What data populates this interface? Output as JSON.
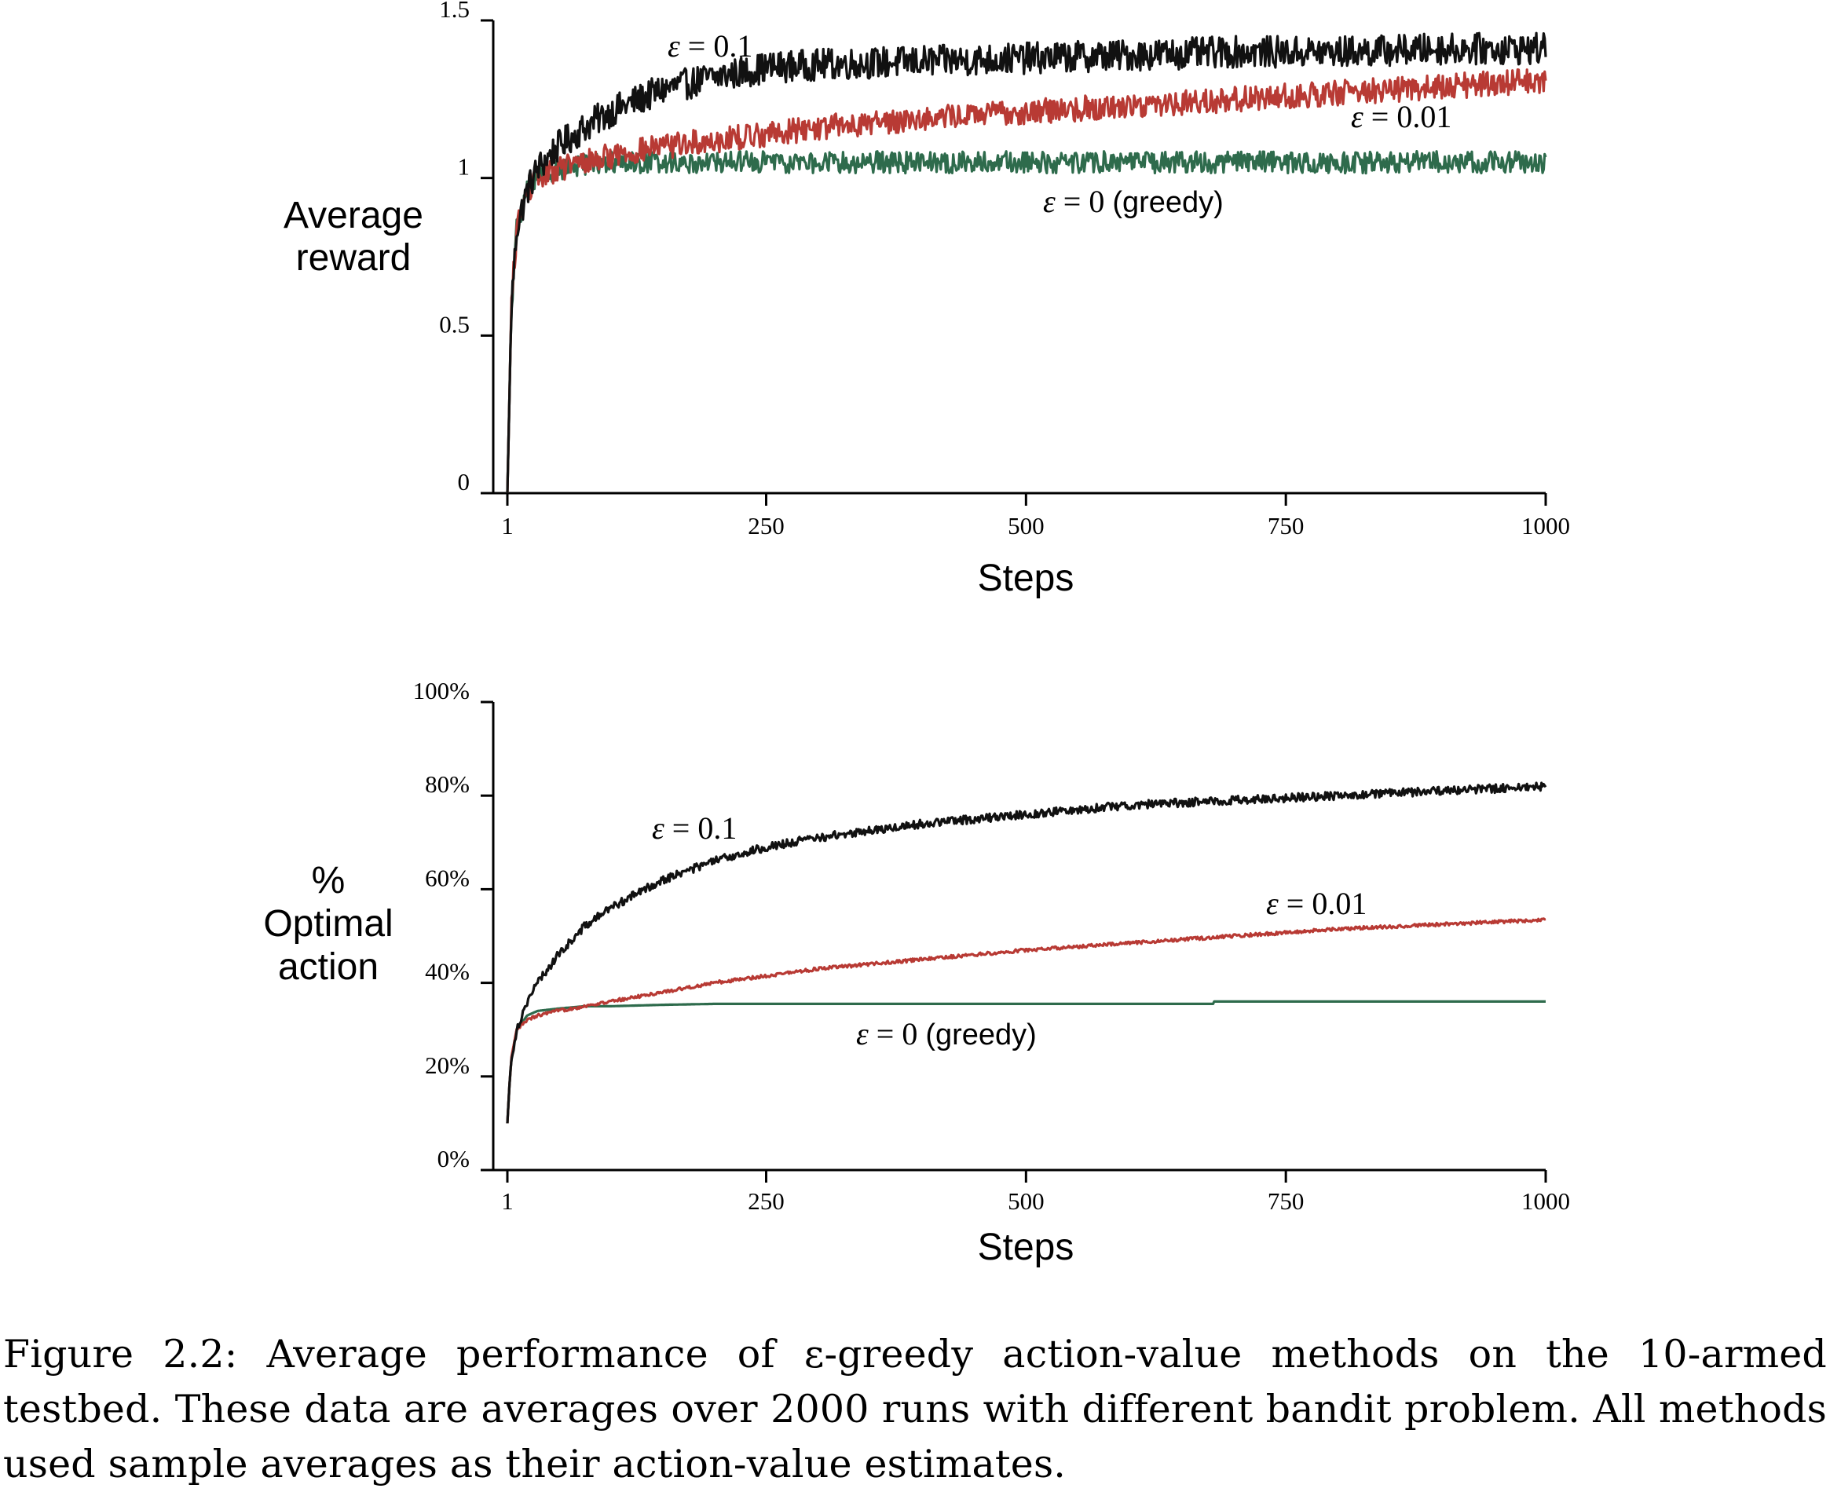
{
  "chart_data": [
    {
      "type": "line",
      "ylabel_lines": [
        "Average",
        "reward"
      ],
      "xlabel": "Steps",
      "xlim": [
        1,
        1000
      ],
      "ylim": [
        0,
        1.5
      ],
      "x_ticks": [
        1,
        250,
        500,
        750,
        1000
      ],
      "x_tick_labels": [
        "1",
        "250",
        "500",
        "750",
        "1000"
      ],
      "y_ticks": [
        0,
        0.5,
        1,
        1.5
      ],
      "y_tick_labels": [
        "0",
        "0.5",
        "1",
        "1.5"
      ],
      "series": [
        {
          "name": "ε = 0.1",
          "label": {
            "prefix": "ε",
            "rest": " = 0.1",
            "suffix": ""
          },
          "color": "#111111",
          "noise": 0.05,
          "x": [
            1,
            5,
            10,
            20,
            30,
            50,
            75,
            100,
            150,
            200,
            250,
            300,
            400,
            500,
            600,
            700,
            800,
            900,
            1000
          ],
          "values": [
            0.0,
            0.6,
            0.84,
            0.96,
            1.03,
            1.1,
            1.16,
            1.21,
            1.28,
            1.32,
            1.35,
            1.36,
            1.37,
            1.38,
            1.39,
            1.4,
            1.4,
            1.41,
            1.41
          ]
        },
        {
          "name": "ε = 0.01",
          "label": {
            "prefix": "ε",
            "rest": " = 0.01",
            "suffix": ""
          },
          "color": "#b83a34",
          "noise": 0.04,
          "x": [
            1,
            5,
            10,
            20,
            30,
            50,
            75,
            100,
            150,
            200,
            250,
            300,
            400,
            500,
            600,
            700,
            800,
            900,
            1000
          ],
          "values": [
            0.0,
            0.6,
            0.84,
            0.96,
            1.0,
            1.03,
            1.05,
            1.07,
            1.1,
            1.12,
            1.14,
            1.16,
            1.19,
            1.21,
            1.23,
            1.25,
            1.27,
            1.29,
            1.31
          ]
        },
        {
          "name": "ε = 0 (greedy)",
          "label": {
            "prefix": "ε",
            "rest": " = 0 ",
            "suffix": "(greedy)"
          },
          "color": "#2e6b4c",
          "noise": 0.035,
          "x": [
            1,
            5,
            10,
            20,
            30,
            50,
            75,
            100,
            150,
            200,
            300,
            400,
            500,
            600,
            700,
            800,
            900,
            1000
          ],
          "values": [
            0.0,
            0.6,
            0.84,
            0.96,
            1.0,
            1.03,
            1.04,
            1.05,
            1.05,
            1.05,
            1.05,
            1.05,
            1.05,
            1.05,
            1.05,
            1.05,
            1.05,
            1.05
          ]
        }
      ]
    },
    {
      "type": "line",
      "ylabel_lines": [
        "%",
        "Optimal",
        "action"
      ],
      "xlabel": "Steps",
      "xlim": [
        1,
        1000
      ],
      "ylim": [
        0,
        100
      ],
      "x_ticks": [
        1,
        250,
        500,
        750,
        1000
      ],
      "x_tick_labels": [
        "1",
        "250",
        "500",
        "750",
        "1000"
      ],
      "y_ticks": [
        0,
        20,
        40,
        60,
        80,
        100
      ],
      "y_tick_labels": [
        "0%",
        "20%",
        "40%",
        "60%",
        "80%",
        "100%"
      ],
      "series": [
        {
          "name": "ε = 0.1",
          "label": {
            "prefix": "ε",
            "rest": " = 0.1",
            "suffix": ""
          },
          "color": "#111111",
          "noise": 0.9,
          "x": [
            1,
            3,
            5,
            10,
            20,
            30,
            50,
            75,
            100,
            150,
            200,
            250,
            300,
            400,
            500,
            600,
            700,
            800,
            900,
            1000
          ],
          "values": [
            10,
            18,
            24,
            30,
            36,
            40,
            46,
            52,
            56,
            62,
            66,
            69,
            71,
            74,
            76,
            78,
            79,
            80,
            81,
            82
          ]
        },
        {
          "name": "ε = 0.01",
          "label": {
            "prefix": "ε",
            "rest": " = 0.01",
            "suffix": ""
          },
          "color": "#b83a34",
          "noise": 0.35,
          "x": [
            1,
            3,
            5,
            10,
            20,
            30,
            50,
            75,
            100,
            150,
            200,
            250,
            300,
            400,
            500,
            600,
            700,
            800,
            900,
            1000
          ],
          "values": [
            10,
            18,
            24,
            30,
            32,
            33,
            34,
            35,
            36,
            38,
            40,
            41.5,
            43,
            45,
            47,
            48.5,
            50,
            51.5,
            52.5,
            53.5
          ]
        },
        {
          "name": "ε = 0 (greedy)",
          "label": {
            "prefix": "ε",
            "rest": " = 0 ",
            "suffix": "(greedy)"
          },
          "color": "#2e6b4c",
          "noise": 0,
          "x": [
            1,
            3,
            5,
            10,
            20,
            30,
            50,
            75,
            100,
            150,
            200,
            300,
            400,
            500,
            600,
            680,
            681,
            700,
            800,
            900,
            1000
          ],
          "values": [
            10,
            18,
            24,
            30,
            33,
            34,
            34.5,
            35,
            35,
            35.3,
            35.5,
            35.5,
            35.5,
            35.5,
            35.5,
            35.5,
            36,
            36,
            36,
            36,
            36
          ]
        }
      ]
    }
  ],
  "caption": "Figure 2.2: Average performance of ε-greedy action-value methods on the 10-armed testbed. These data are averages over 2000 runs with different bandit problem. All methods used sample averages as their action-value estimates."
}
